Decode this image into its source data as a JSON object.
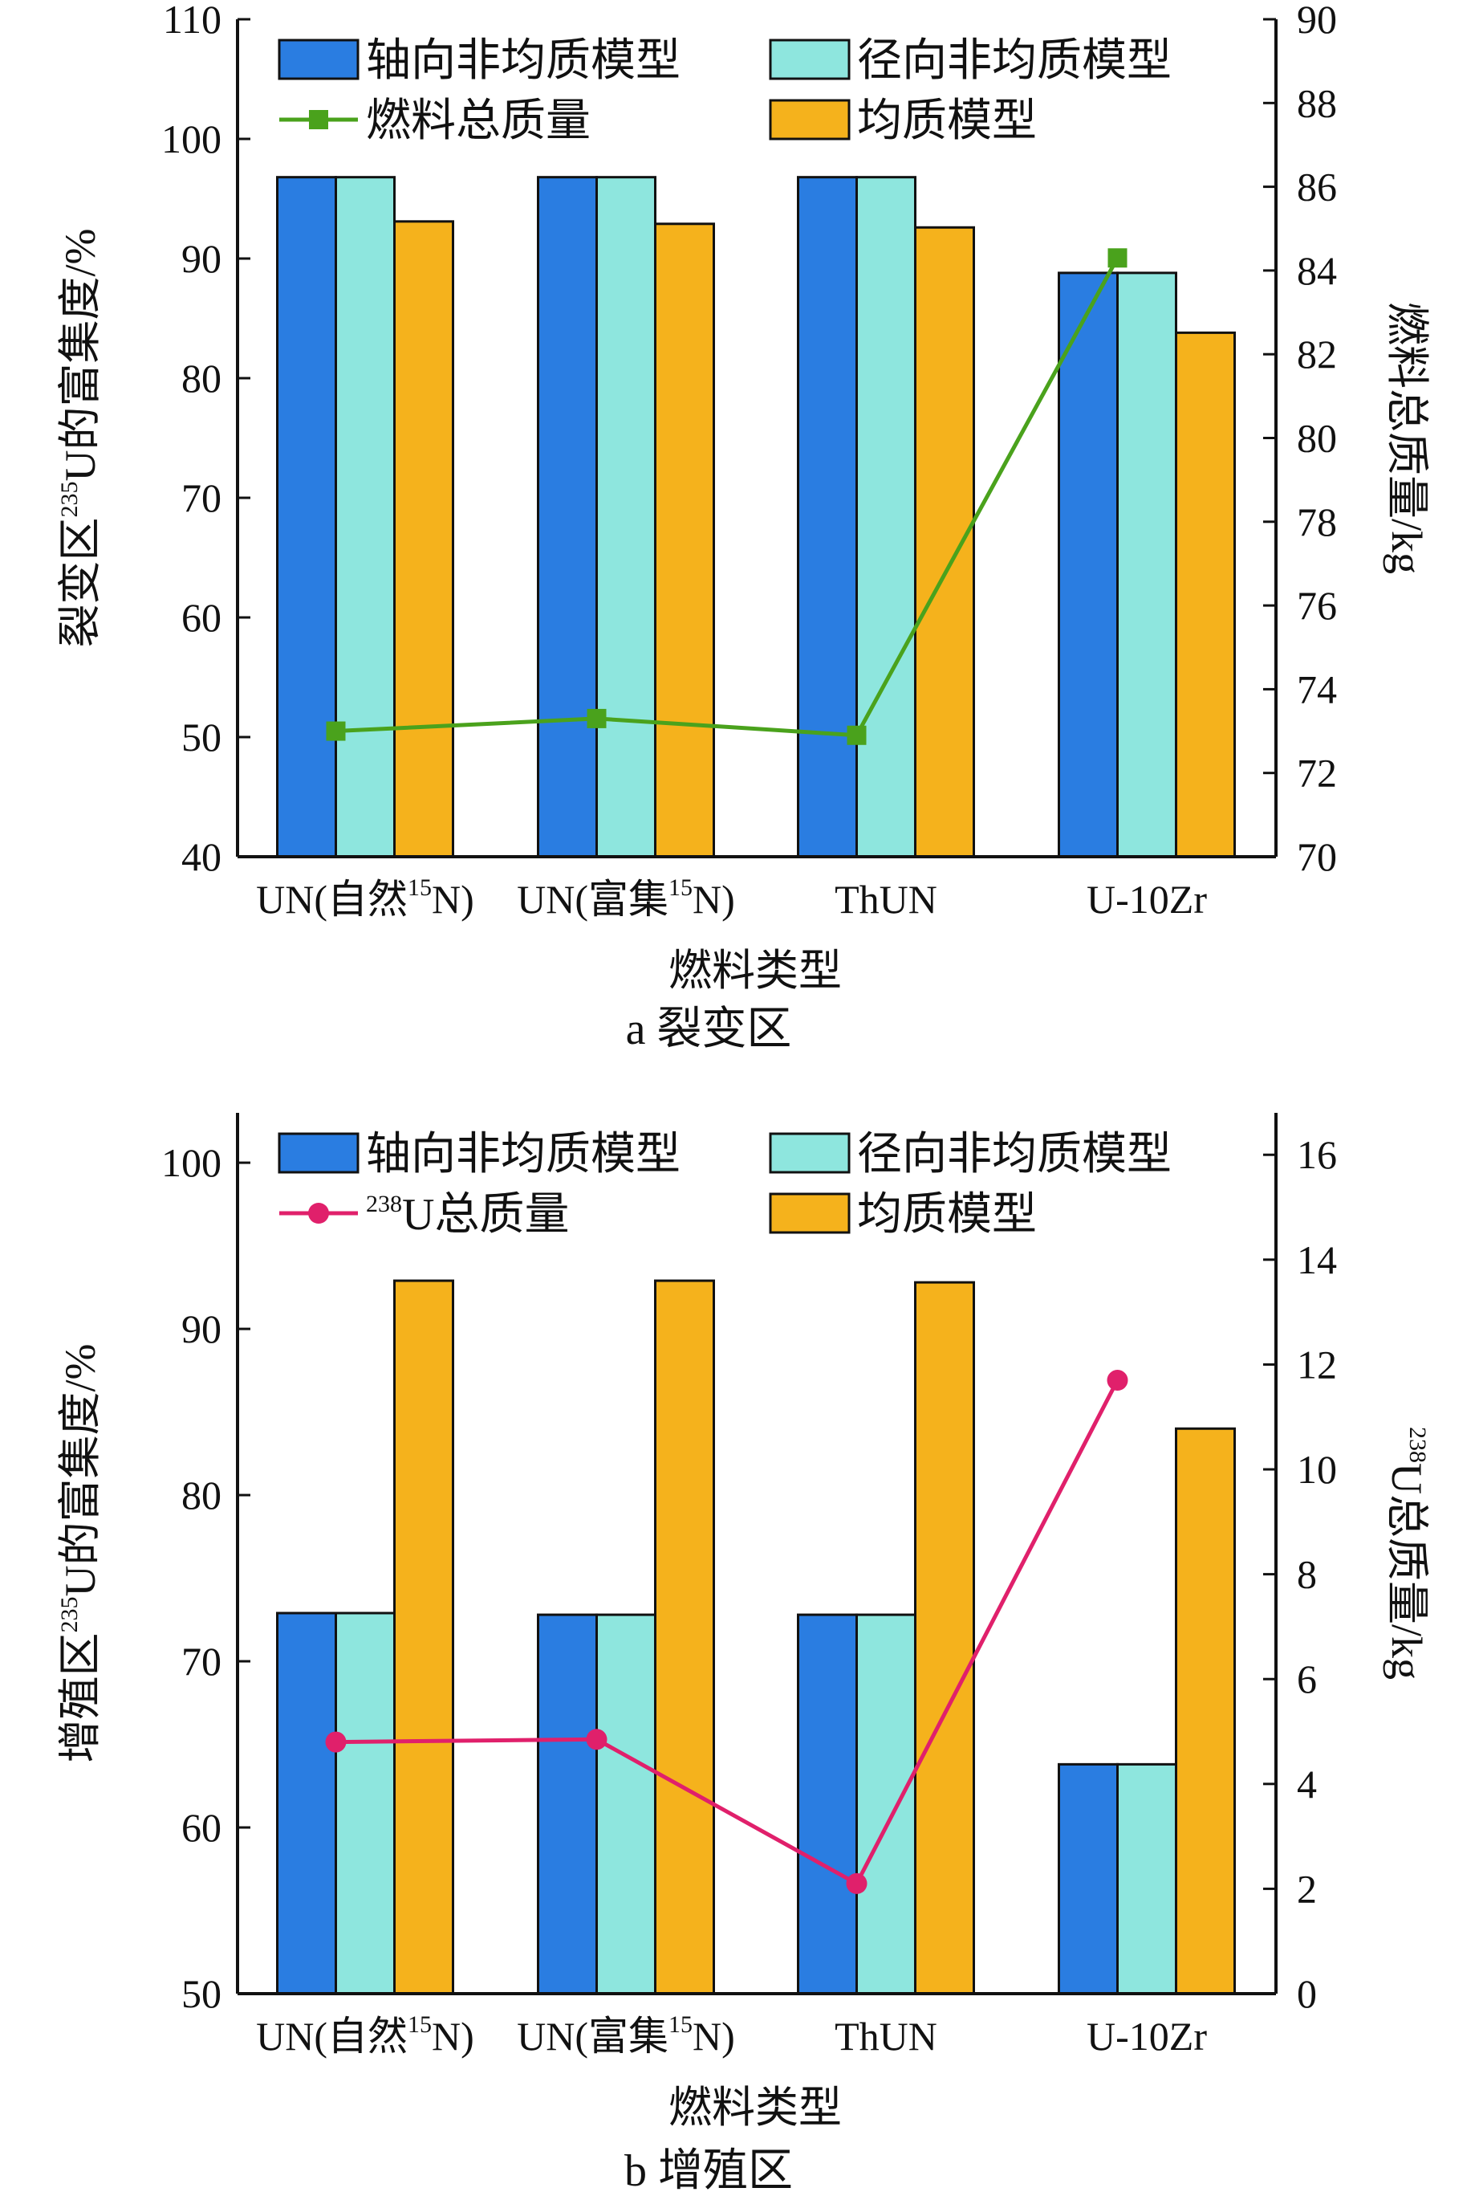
{
  "colors": {
    "axial": "#2a7de1",
    "radial": "#8ee6de",
    "homogeneous": "#f5b21c",
    "line_top": "#4aa21c",
    "line_bottom": "#e0206b"
  },
  "chart_data": [
    {
      "type": "bar",
      "panel_caption": "a  裂变区",
      "categories": [
        {
          "main": "UN(自然",
          "sup": "15",
          "tail": "N)"
        },
        {
          "main": "UN(富集",
          "sup": "15",
          "tail": "N)"
        },
        {
          "main": "ThUN",
          "sup": "",
          "tail": ""
        },
        {
          "main": "U-10Zr",
          "sup": "",
          "tail": ""
        }
      ],
      "xlabel": "燃料类型",
      "ylabel": {
        "pre": "裂变区",
        "sup": "235",
        "post": "U的富集度/%"
      },
      "y2label": {
        "pre": "",
        "sup": "",
        "post": "燃料总质量/kg"
      },
      "ylim": [
        40,
        110
      ],
      "yticks": [
        40,
        50,
        60,
        70,
        80,
        90,
        100,
        110
      ],
      "y2lim": [
        70,
        90
      ],
      "y2ticks": [
        70,
        72,
        74,
        76,
        78,
        80,
        82,
        84,
        86,
        88,
        90
      ],
      "series": [
        {
          "name": "轴向非均质模型",
          "kind": "bar",
          "color_key": "axial",
          "values": [
            96.8,
            96.8,
            96.8,
            88.8
          ]
        },
        {
          "name": "径向非均质模型",
          "kind": "bar",
          "color_key": "radial",
          "values": [
            96.8,
            96.8,
            96.8,
            88.8
          ]
        },
        {
          "name": "均质模型",
          "kind": "bar",
          "color_key": "homogeneous",
          "values": [
            93.1,
            92.9,
            92.6,
            83.8
          ]
        },
        {
          "name_pre": "",
          "name_sup": "",
          "name": "燃料总质量",
          "kind": "line",
          "axis": "right",
          "marker": "square",
          "color_key": "line_top",
          "values": [
            73.0,
            73.3,
            72.9,
            84.3
          ]
        }
      ],
      "legend": {
        "placement": "top",
        "columns": 2,
        "order": [
          0,
          1,
          3,
          2
        ]
      }
    },
    {
      "type": "bar",
      "panel_caption": "b  增殖区",
      "categories": [
        {
          "main": "UN(自然",
          "sup": "15",
          "tail": "N)"
        },
        {
          "main": "UN(富集",
          "sup": "15",
          "tail": "N)"
        },
        {
          "main": "ThUN",
          "sup": "",
          "tail": ""
        },
        {
          "main": "U-10Zr",
          "sup": "",
          "tail": ""
        }
      ],
      "xlabel": "燃料类型",
      "ylabel": {
        "pre": "增殖区",
        "sup": "235",
        "post": "U的富集度/%"
      },
      "y2label": {
        "pre": "",
        "sup": "238",
        "post": "U总质量/kg"
      },
      "ylim": [
        50,
        103
      ],
      "yticks": [
        50,
        60,
        70,
        80,
        90,
        100
      ],
      "y2lim": [
        0,
        16.8
      ],
      "y2ticks": [
        0,
        2,
        4,
        6,
        8,
        10,
        12,
        14,
        16
      ],
      "series": [
        {
          "name": "轴向非均质模型",
          "kind": "bar",
          "color_key": "axial",
          "values": [
            72.9,
            72.8,
            72.8,
            63.8
          ]
        },
        {
          "name": "径向非均质模型",
          "kind": "bar",
          "color_key": "radial",
          "values": [
            72.9,
            72.8,
            72.8,
            63.8
          ]
        },
        {
          "name": "均质模型",
          "kind": "bar",
          "color_key": "homogeneous",
          "values": [
            92.9,
            92.9,
            92.8,
            84.0
          ]
        },
        {
          "name_pre": "",
          "name_sup": "238",
          "name": "U总质量",
          "kind": "line",
          "axis": "right",
          "marker": "circle",
          "color_key": "line_bottom",
          "values": [
            4.8,
            4.85,
            2.1,
            11.7
          ]
        }
      ],
      "legend": {
        "placement": "top",
        "columns": 2,
        "order": [
          0,
          1,
          3,
          2
        ]
      }
    }
  ]
}
